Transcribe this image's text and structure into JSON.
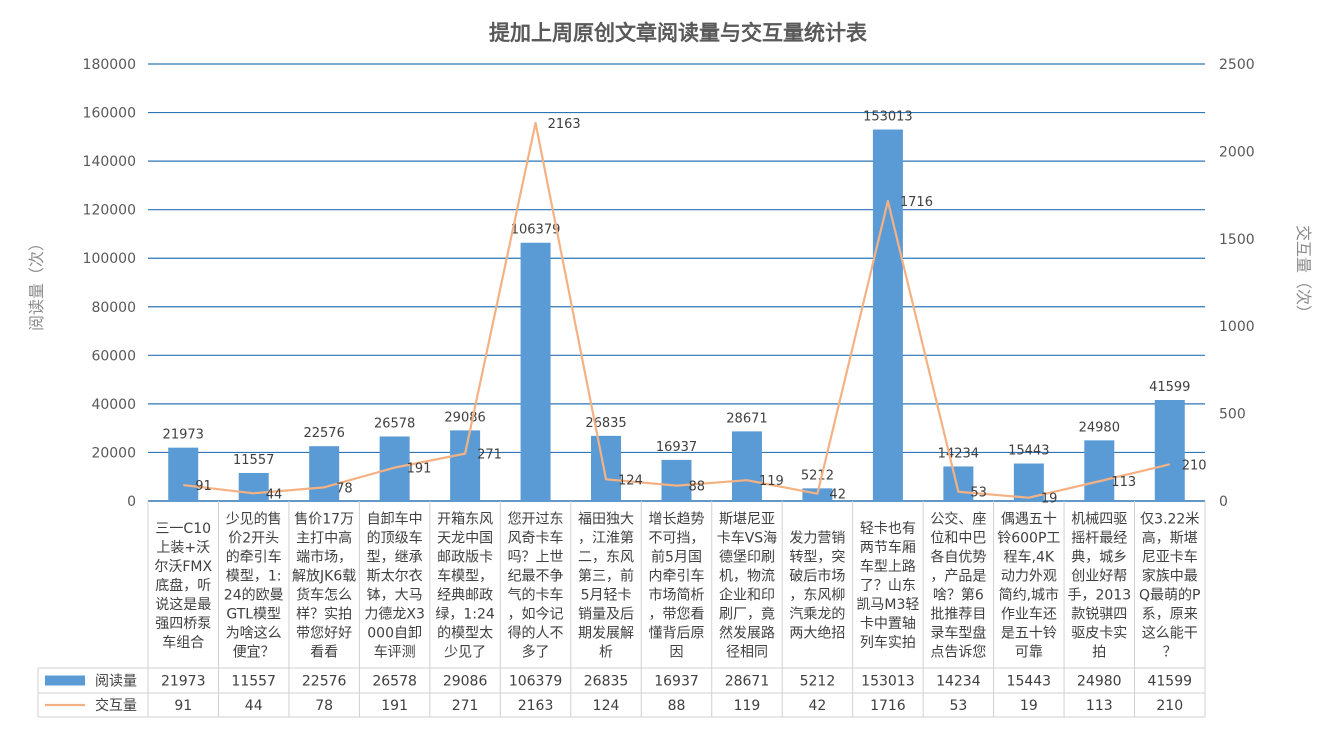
{
  "chart_data": {
    "type": "bar",
    "title": "提加上周原创文章阅读量与交互量统计表",
    "ylabel": "阅读量（次）",
    "y2label": "交互量（次）",
    "ylim": [
      0,
      180000
    ],
    "y2lim": [
      0,
      2500
    ],
    "yticks": [
      "0",
      "20000",
      "40000",
      "60000",
      "80000",
      "100000",
      "120000",
      "140000",
      "160000",
      "180000"
    ],
    "y2ticks": [
      "0",
      "500",
      "1000",
      "1500",
      "2000",
      "2500"
    ],
    "grid": true,
    "legend": "bottom-left data table",
    "categories": [
      "三一C10上装+沃尔沃FMX底盘，听说这是最强四桥泵车组合",
      "少见的售价2开头的牵引车模型，1:24的欧曼GTL模型为啥这么便宜？",
      "售价17万主打中高端市场，解放JK6载货车怎么样？实拍带您好好看看",
      "自卸车中的顶级车型，继承斯太尔衣钵，大马力德龙X3000自卸车评测",
      "开箱东风天龙中国邮政版卡车模型，经典邮政绿，1:24的模型太少见了",
      "您开过东风奇卡车吗？上世纪最不争气的卡车，如今记得的人不多了",
      "福田独大，江淮第二，东风第三，前5月轻卡销量及后期发展解析",
      "增长趋势不可挡，前5月国内牵引车市场简析，带您看懂背后原因",
      "斯堪尼亚卡车VS海德堡印刷机，物流企业和印刷厂，竟然发展路径相同",
      "发力营销转型，突破后市场，东风柳汽乘龙的两大绝招",
      "轻卡也有两节车厢车型上路了？山东凯马M3轻卡中置轴列车实拍",
      "公交、座位和中巴各自优势，产品是啥？第6批推荐目录车型盘点告诉您",
      "偶遇五十铃600P工程车,4K动力外观简约,城市作业车还是五十铃可靠",
      "机械四驱摇杆最经典，城乡创业好帮手，2013款锐骐四驱皮卡实拍",
      "仅3.22米高，斯堪尼亚卡车家族中最Q最萌的P系，原来这么能干？"
    ],
    "series": [
      {
        "name": "阅读量",
        "type": "bar",
        "axis": "left",
        "color": "#5b9bd5",
        "values": [
          21973,
          11557,
          22576,
          26578,
          29086,
          106379,
          26835,
          16937,
          28671,
          5212,
          153013,
          14234,
          15443,
          24980,
          41599
        ]
      },
      {
        "name": "交互量",
        "type": "line",
        "axis": "right",
        "color": "#f4b183",
        "values": [
          91,
          44,
          78,
          191,
          271,
          2163,
          124,
          88,
          119,
          42,
          1716,
          53,
          19,
          113,
          210
        ]
      }
    ]
  }
}
